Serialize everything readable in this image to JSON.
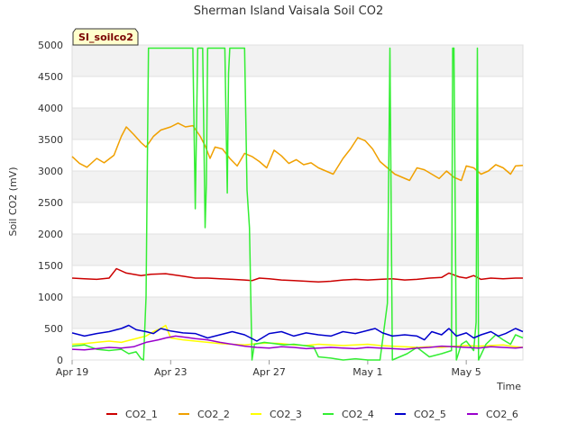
{
  "chart_data": {
    "type": "line",
    "title": "Sherman Island Vaisala Soil CO2",
    "site_tag": "SI_soilco2",
    "xlabel": "Time",
    "ylabel": "Soil CO2 (mV)",
    "x_ticks": [
      {
        "label": "Apr 19",
        "day": 0
      },
      {
        "label": "Apr 23",
        "day": 4
      },
      {
        "label": "Apr 27",
        "day": 8
      },
      {
        "label": "May 1",
        "day": 12
      },
      {
        "label": "May 5",
        "day": 16
      }
    ],
    "xlim_days": [
      0,
      18.3
    ],
    "ylim": [
      0,
      5000
    ],
    "y_ticks": [
      0,
      500,
      1000,
      1500,
      2000,
      2500,
      3000,
      3500,
      4000,
      4500,
      5000
    ],
    "grid": "horizontal alternating bands",
    "legend_position": "bottom",
    "series": [
      {
        "name": "CO2_1",
        "color": "#cc0000",
        "points": [
          [
            0,
            1300
          ],
          [
            0.5,
            1290
          ],
          [
            1,
            1280
          ],
          [
            1.5,
            1300
          ],
          [
            1.8,
            1450
          ],
          [
            2.2,
            1380
          ],
          [
            2.8,
            1340
          ],
          [
            3.2,
            1360
          ],
          [
            3.8,
            1370
          ],
          [
            4.5,
            1330
          ],
          [
            5,
            1300
          ],
          [
            5.5,
            1300
          ],
          [
            6,
            1290
          ],
          [
            6.5,
            1280
          ],
          [
            7,
            1270
          ],
          [
            7.3,
            1260
          ],
          [
            7.6,
            1300
          ],
          [
            8,
            1290
          ],
          [
            8.5,
            1270
          ],
          [
            9,
            1260
          ],
          [
            9.5,
            1250
          ],
          [
            10,
            1240
          ],
          [
            10.5,
            1250
          ],
          [
            11,
            1270
          ],
          [
            11.5,
            1280
          ],
          [
            12,
            1270
          ],
          [
            12.5,
            1280
          ],
          [
            13,
            1290
          ],
          [
            13.5,
            1270
          ],
          [
            14,
            1280
          ],
          [
            14.5,
            1300
          ],
          [
            15,
            1310
          ],
          [
            15.3,
            1380
          ],
          [
            15.7,
            1320
          ],
          [
            16,
            1300
          ],
          [
            16.3,
            1340
          ],
          [
            16.6,
            1280
          ],
          [
            17,
            1300
          ],
          [
            17.5,
            1290
          ],
          [
            18,
            1300
          ],
          [
            18.3,
            1300
          ]
        ]
      },
      {
        "name": "CO2_2",
        "color": "#f0a000",
        "points": [
          [
            0,
            3230
          ],
          [
            0.3,
            3120
          ],
          [
            0.6,
            3060
          ],
          [
            1,
            3200
          ],
          [
            1.3,
            3130
          ],
          [
            1.7,
            3250
          ],
          [
            2,
            3550
          ],
          [
            2.2,
            3700
          ],
          [
            2.5,
            3580
          ],
          [
            2.8,
            3450
          ],
          [
            3,
            3380
          ],
          [
            3.3,
            3550
          ],
          [
            3.6,
            3650
          ],
          [
            4,
            3700
          ],
          [
            4.3,
            3760
          ],
          [
            4.6,
            3700
          ],
          [
            4.9,
            3720
          ],
          [
            5.2,
            3550
          ],
          [
            5.4,
            3400
          ],
          [
            5.6,
            3200
          ],
          [
            5.8,
            3380
          ],
          [
            6.1,
            3350
          ],
          [
            6.4,
            3200
          ],
          [
            6.7,
            3080
          ],
          [
            7,
            3280
          ],
          [
            7.3,
            3230
          ],
          [
            7.6,
            3150
          ],
          [
            7.9,
            3050
          ],
          [
            8.2,
            3330
          ],
          [
            8.5,
            3240
          ],
          [
            8.8,
            3120
          ],
          [
            9.1,
            3180
          ],
          [
            9.4,
            3100
          ],
          [
            9.7,
            3130
          ],
          [
            10,
            3050
          ],
          [
            10.3,
            3000
          ],
          [
            10.6,
            2950
          ],
          [
            11,
            3200
          ],
          [
            11.3,
            3350
          ],
          [
            11.6,
            3530
          ],
          [
            11.9,
            3480
          ],
          [
            12.2,
            3350
          ],
          [
            12.5,
            3150
          ],
          [
            12.8,
            3050
          ],
          [
            13.1,
            2950
          ],
          [
            13.4,
            2900
          ],
          [
            13.7,
            2850
          ],
          [
            14,
            3050
          ],
          [
            14.3,
            3020
          ],
          [
            14.6,
            2950
          ],
          [
            14.9,
            2880
          ],
          [
            15.2,
            3000
          ],
          [
            15.5,
            2900
          ],
          [
            15.8,
            2850
          ],
          [
            16,
            3080
          ],
          [
            16.3,
            3050
          ],
          [
            16.6,
            2950
          ],
          [
            16.9,
            3000
          ],
          [
            17.2,
            3100
          ],
          [
            17.5,
            3050
          ],
          [
            17.8,
            2950
          ],
          [
            18,
            3080
          ],
          [
            18.3,
            3090
          ]
        ]
      },
      {
        "name": "CO2_3",
        "color": "#ffff00",
        "points": [
          [
            0,
            250
          ],
          [
            0.5,
            260
          ],
          [
            1,
            280
          ],
          [
            1.5,
            300
          ],
          [
            2,
            280
          ],
          [
            2.5,
            330
          ],
          [
            3,
            380
          ],
          [
            3.3,
            450
          ],
          [
            3.6,
            500
          ],
          [
            3.8,
            550
          ],
          [
            4,
            350
          ],
          [
            4.5,
            320
          ],
          [
            5,
            300
          ],
          [
            5.5,
            280
          ],
          [
            6,
            260
          ],
          [
            6.5,
            250
          ],
          [
            7,
            240
          ],
          [
            7.5,
            260
          ],
          [
            8,
            270
          ],
          [
            8.5,
            260
          ],
          [
            9,
            240
          ],
          [
            9.5,
            230
          ],
          [
            10,
            250
          ],
          [
            10.5,
            240
          ],
          [
            11,
            230
          ],
          [
            11.5,
            240
          ],
          [
            12,
            250
          ],
          [
            12.5,
            230
          ],
          [
            13,
            220
          ],
          [
            13.5,
            210
          ],
          [
            14,
            200
          ],
          [
            14.5,
            210
          ],
          [
            15,
            200
          ],
          [
            15.5,
            220
          ],
          [
            16,
            230
          ],
          [
            16.5,
            220
          ],
          [
            17,
            230
          ],
          [
            17.5,
            240
          ],
          [
            18,
            210
          ],
          [
            18.3,
            200
          ]
        ]
      },
      {
        "name": "CO2_4",
        "color": "#33ee33",
        "points": [
          [
            0,
            220
          ],
          [
            0.5,
            240
          ],
          [
            1,
            170
          ],
          [
            1.5,
            150
          ],
          [
            2,
            170
          ],
          [
            2.3,
            100
          ],
          [
            2.6,
            130
          ],
          [
            2.8,
            20
          ],
          [
            2.9,
            0
          ],
          [
            3,
            1000
          ],
          [
            3.1,
            4950
          ],
          [
            3.5,
            4950
          ],
          [
            4,
            4950
          ],
          [
            4.5,
            4950
          ],
          [
            4.9,
            4950
          ],
          [
            5,
            2400
          ],
          [
            5.1,
            4950
          ],
          [
            5.3,
            4950
          ],
          [
            5.4,
            2100
          ],
          [
            5.45,
            2800
          ],
          [
            5.5,
            4950
          ],
          [
            5.8,
            4950
          ],
          [
            6,
            4950
          ],
          [
            6.2,
            4950
          ],
          [
            6.3,
            2650
          ],
          [
            6.35,
            4550
          ],
          [
            6.4,
            4950
          ],
          [
            6.8,
            4950
          ],
          [
            7,
            4950
          ],
          [
            7.1,
            2700
          ],
          [
            7.2,
            2100
          ],
          [
            7.3,
            0
          ],
          [
            7.4,
            250
          ],
          [
            7.8,
            280
          ],
          [
            8.2,
            260
          ],
          [
            8.6,
            240
          ],
          [
            9,
            250
          ],
          [
            9.4,
            230
          ],
          [
            9.8,
            210
          ],
          [
            10,
            50
          ],
          [
            10.5,
            30
          ],
          [
            11,
            0
          ],
          [
            11.5,
            20
          ],
          [
            12,
            0
          ],
          [
            12.5,
            0
          ],
          [
            12.8,
            900
          ],
          [
            12.9,
            4950
          ],
          [
            13,
            0
          ],
          [
            13.3,
            50
          ],
          [
            13.6,
            100
          ],
          [
            14,
            200
          ],
          [
            14.5,
            50
          ],
          [
            15,
            100
          ],
          [
            15.4,
            150
          ],
          [
            15.45,
            4950
          ],
          [
            15.5,
            4950
          ],
          [
            15.6,
            0
          ],
          [
            15.8,
            250
          ],
          [
            16,
            300
          ],
          [
            16.3,
            150
          ],
          [
            16.4,
            600
          ],
          [
            16.45,
            4950
          ],
          [
            16.5,
            0
          ],
          [
            16.8,
            250
          ],
          [
            17.2,
            400
          ],
          [
            17.5,
            320
          ],
          [
            17.8,
            250
          ],
          [
            18,
            400
          ],
          [
            18.3,
            350
          ]
        ]
      },
      {
        "name": "CO2_5",
        "color": "#0000cc",
        "points": [
          [
            0,
            430
          ],
          [
            0.5,
            380
          ],
          [
            1,
            420
          ],
          [
            1.5,
            450
          ],
          [
            2,
            500
          ],
          [
            2.3,
            550
          ],
          [
            2.6,
            480
          ],
          [
            3,
            450
          ],
          [
            3.3,
            420
          ],
          [
            3.6,
            500
          ],
          [
            4,
            460
          ],
          [
            4.5,
            430
          ],
          [
            5,
            420
          ],
          [
            5.5,
            350
          ],
          [
            6,
            400
          ],
          [
            6.5,
            450
          ],
          [
            7,
            400
          ],
          [
            7.5,
            300
          ],
          [
            8,
            420
          ],
          [
            8.5,
            450
          ],
          [
            9,
            380
          ],
          [
            9.5,
            430
          ],
          [
            10,
            400
          ],
          [
            10.5,
            380
          ],
          [
            11,
            450
          ],
          [
            11.5,
            420
          ],
          [
            12,
            470
          ],
          [
            12.3,
            500
          ],
          [
            12.6,
            430
          ],
          [
            13,
            380
          ],
          [
            13.5,
            400
          ],
          [
            14,
            380
          ],
          [
            14.3,
            320
          ],
          [
            14.6,
            450
          ],
          [
            15,
            400
          ],
          [
            15.3,
            500
          ],
          [
            15.6,
            380
          ],
          [
            16,
            430
          ],
          [
            16.3,
            350
          ],
          [
            16.6,
            400
          ],
          [
            17,
            450
          ],
          [
            17.3,
            380
          ],
          [
            17.6,
            420
          ],
          [
            18,
            500
          ],
          [
            18.3,
            450
          ]
        ]
      },
      {
        "name": "CO2_6",
        "color": "#9900cc",
        "points": [
          [
            0,
            170
          ],
          [
            0.5,
            160
          ],
          [
            1,
            180
          ],
          [
            1.5,
            200
          ],
          [
            2,
            190
          ],
          [
            2.5,
            210
          ],
          [
            3,
            280
          ],
          [
            3.5,
            320
          ],
          [
            3.8,
            350
          ],
          [
            4.2,
            380
          ],
          [
            4.6,
            360
          ],
          [
            5,
            340
          ],
          [
            5.5,
            320
          ],
          [
            6,
            280
          ],
          [
            6.5,
            250
          ],
          [
            7,
            220
          ],
          [
            7.5,
            200
          ],
          [
            8,
            190
          ],
          [
            8.5,
            210
          ],
          [
            9,
            200
          ],
          [
            9.5,
            180
          ],
          [
            10,
            190
          ],
          [
            10.5,
            200
          ],
          [
            11,
            190
          ],
          [
            11.5,
            180
          ],
          [
            12,
            200
          ],
          [
            12.5,
            190
          ],
          [
            13,
            180
          ],
          [
            13.5,
            170
          ],
          [
            14,
            190
          ],
          [
            14.5,
            200
          ],
          [
            15,
            220
          ],
          [
            15.5,
            210
          ],
          [
            16,
            200
          ],
          [
            16.5,
            190
          ],
          [
            17,
            210
          ],
          [
            17.5,
            200
          ],
          [
            18,
            190
          ],
          [
            18.3,
            200
          ]
        ]
      }
    ]
  }
}
